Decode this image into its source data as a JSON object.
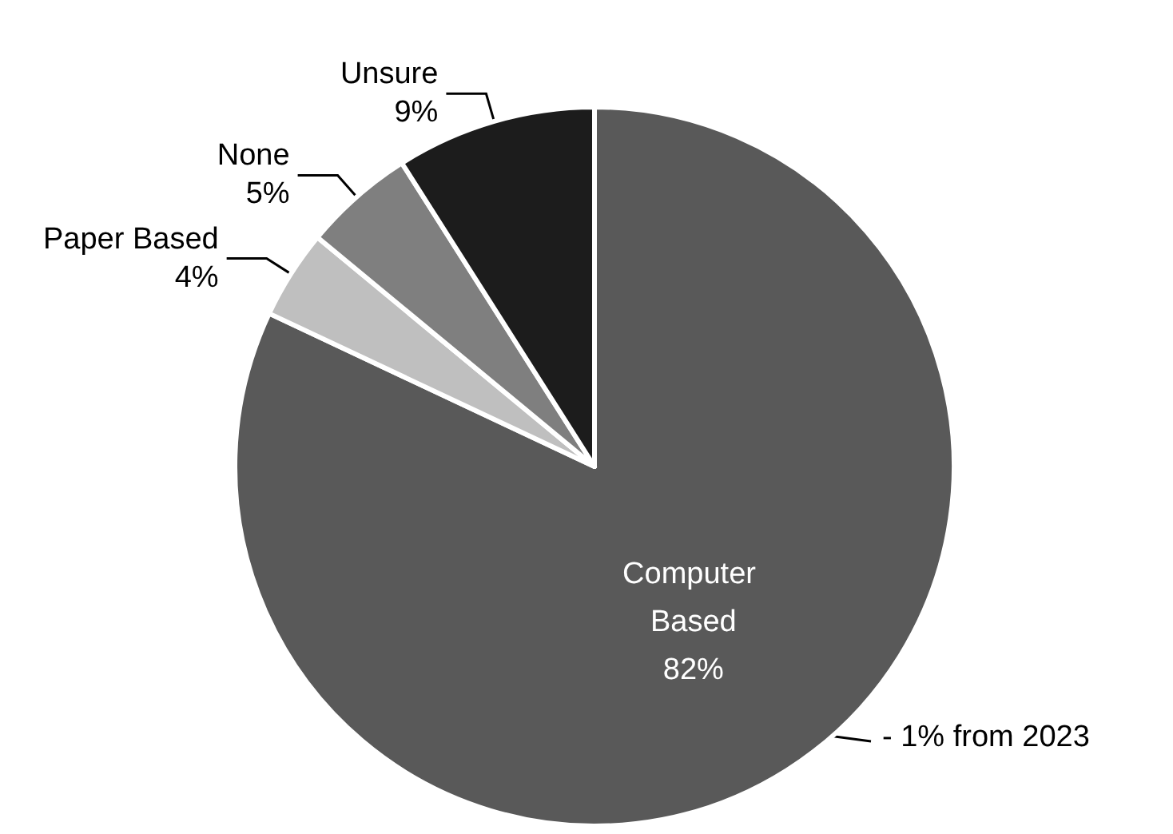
{
  "chart_data": {
    "type": "pie",
    "categories": [
      "Computer Based",
      "Paper Based",
      "None",
      "Unsure"
    ],
    "values": [
      82,
      4,
      5,
      9
    ],
    "value_labels": [
      "82%",
      "4%",
      "5%",
      "9%"
    ],
    "colors": [
      "#595959",
      "#bfbfbf",
      "#7f7f7f",
      "#1c1c1c"
    ],
    "annotations": [
      "- 1% from 2023"
    ]
  }
}
